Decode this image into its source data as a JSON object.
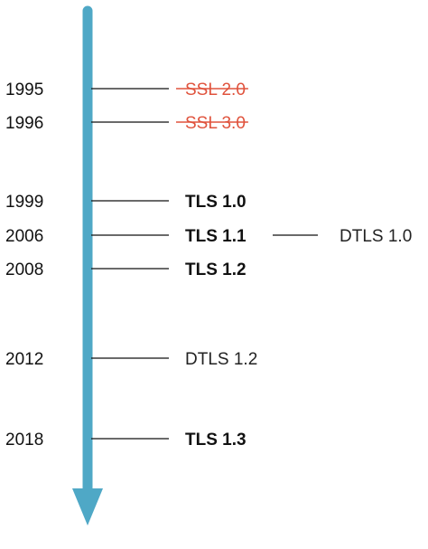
{
  "colors": {
    "arrow": "#4fa8c6",
    "deprecated": "#e0533d",
    "text": "#111111",
    "line": "#111111"
  },
  "events": [
    {
      "year": "1995",
      "label": "SSL 2.0",
      "style": "deprecated"
    },
    {
      "year": "1996",
      "label": "SSL 3.0",
      "style": "deprecated"
    },
    {
      "year": "1999",
      "label": "TLS 1.0",
      "style": "bold"
    },
    {
      "year": "2006",
      "label": "TLS 1.1",
      "style": "bold",
      "branch": {
        "label": "DTLS 1.0",
        "style": "normal"
      }
    },
    {
      "year": "2008",
      "label": "TLS 1.2",
      "style": "bold"
    },
    {
      "year": "2012",
      "label": "DTLS 1.2",
      "style": "normal"
    },
    {
      "year": "2018",
      "label": "TLS 1.3",
      "style": "bold"
    }
  ]
}
